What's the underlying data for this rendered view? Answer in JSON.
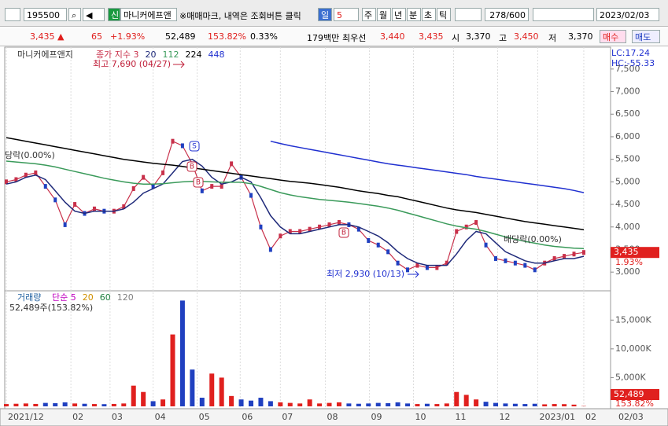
{
  "toolbar": {
    "code": "195500",
    "tag": "신",
    "name": "마니커에프앤",
    "notice": "※매매마크, 내역은 조회버튼 클릭",
    "period": "일",
    "period_n": "5",
    "tabs": [
      "주",
      "월",
      "년",
      "분",
      "초",
      "틱"
    ],
    "count": "278/600",
    "date": "2023/02/03"
  },
  "quote": {
    "price": "3,435 ▲",
    "change": "65",
    "rate": "+1.93%",
    "volume": "52,489",
    "vol_ratio": "153.82%",
    "turnover": "0.33%",
    "amount": "179백만",
    "best_label": "최우선",
    "ask": "3,440",
    "bid": "3,435",
    "open_label": "시",
    "open": "3,370",
    "high_label": "고",
    "high": "3,450",
    "low_label": "저",
    "low": "3,370",
    "buy": "매수",
    "sell": "매도"
  },
  "chart_data": [
    {
      "type": "line",
      "title": "마니커에프앤지",
      "series": [
        {
          "name": "종가 지수 3",
          "color": "#c8304a",
          "values": [
            5000,
            5050,
            5150,
            5200,
            4900,
            4600,
            4050,
            4500,
            4300,
            4400,
            4350,
            4350,
            4450,
            4850,
            5100,
            4900,
            5200,
            5900,
            5800,
            5400,
            4800,
            4900,
            4900,
            5400,
            5100,
            4700,
            4000,
            3500,
            3800,
            3900,
            3900,
            3950,
            4000,
            4050,
            4100,
            4050,
            3950,
            3700,
            3600,
            3450,
            3200,
            3050,
            3150,
            3100,
            3100,
            3200,
            3900,
            4000,
            4100,
            3600,
            3300,
            3250,
            3200,
            3150,
            3050,
            3200,
            3300,
            3350,
            3400,
            3435
          ]
        },
        {
          "name": "20",
          "color": "#1f2a7a",
          "values": [
            4950,
            5000,
            5100,
            5150,
            5050,
            4800,
            4550,
            4350,
            4300,
            4350,
            4350,
            4350,
            4400,
            4550,
            4750,
            4850,
            4950,
            5200,
            5450,
            5500,
            5350,
            5100,
            4950,
            5000,
            5100,
            5000,
            4650,
            4250,
            4000,
            3850,
            3850,
            3900,
            3950,
            4000,
            4050,
            4050,
            4000,
            3900,
            3800,
            3650,
            3450,
            3300,
            3200,
            3150,
            3150,
            3150,
            3400,
            3700,
            3900,
            3850,
            3650,
            3450,
            3350,
            3250,
            3200,
            3200,
            3250,
            3300,
            3300,
            3350
          ]
        },
        {
          "name": "112",
          "color": "#3a9a5a",
          "values": [
            5460,
            5440,
            5420,
            5400,
            5370,
            5330,
            5280,
            5230,
            5180,
            5130,
            5080,
            5040,
            5000,
            4970,
            4950,
            4950,
            4960,
            4980,
            5000,
            5010,
            5010,
            5000,
            4990,
            4990,
            4990,
            4960,
            4900,
            4830,
            4760,
            4710,
            4670,
            4640,
            4610,
            4590,
            4570,
            4550,
            4520,
            4490,
            4460,
            4420,
            4370,
            4310,
            4250,
            4190,
            4130,
            4070,
            4020,
            3980,
            3950,
            3900,
            3840,
            3780,
            3730,
            3680,
            3640,
            3600,
            3570,
            3550,
            3530,
            3520
          ]
        },
        {
          "name": "224",
          "color": "#000000",
          "values": [
            5980,
            5940,
            5900,
            5860,
            5820,
            5780,
            5740,
            5700,
            5660,
            5620,
            5580,
            5540,
            5500,
            5470,
            5440,
            5410,
            5390,
            5370,
            5340,
            5310,
            5280,
            5250,
            5220,
            5190,
            5160,
            5130,
            5100,
            5070,
            5040,
            5010,
            4990,
            4970,
            4940,
            4910,
            4880,
            4840,
            4800,
            4770,
            4740,
            4700,
            4670,
            4620,
            4570,
            4520,
            4470,
            4420,
            4380,
            4350,
            4320,
            4280,
            4240,
            4200,
            4160,
            4120,
            4090,
            4060,
            4030,
            4000,
            3970,
            3940
          ]
        },
        {
          "name": "448",
          "color": "#2030d0",
          "values": [
            null,
            null,
            null,
            null,
            null,
            null,
            null,
            null,
            null,
            null,
            null,
            null,
            null,
            null,
            null,
            null,
            null,
            null,
            null,
            null,
            null,
            null,
            null,
            null,
            null,
            null,
            null,
            5900,
            5850,
            5800,
            5760,
            5720,
            5680,
            5640,
            5600,
            5560,
            5520,
            5480,
            5440,
            5400,
            5370,
            5340,
            5310,
            5280,
            5250,
            5220,
            5190,
            5160,
            5120,
            5090,
            5060,
            5030,
            5000,
            4970,
            4940,
            4910,
            4880,
            4850,
            4810,
            4760
          ]
        }
      ],
      "ylim": [
        2620,
        7950
      ],
      "yticks": [
        {
          "value": 3000,
          "label": "3,000"
        },
        {
          "value": 3500,
          "label": "3,500"
        },
        {
          "value": 4000,
          "label": "4,000"
        },
        {
          "value": 4500,
          "label": "4,500"
        },
        {
          "value": 5000,
          "label": "5,000"
        },
        {
          "value": 5500,
          "label": "5,500"
        },
        {
          "value": 6000,
          "label": "6,000"
        },
        {
          "value": 6500,
          "label": "6,500"
        },
        {
          "value": 7000,
          "label": "7,000"
        },
        {
          "value": 7500,
          "label": "7,500"
        }
      ],
      "indicators": [
        "LC:17.24",
        "HC:-55.33"
      ],
      "last_price": "3,435",
      "last_rate": "1.93%",
      "annotations": [
        "최고 7,690 (04/27)",
        "최저 2,930 (10/13)",
        "배당락(0.00%)",
        "당락(0.00%)"
      ],
      "markers": [
        "S",
        "B",
        "B",
        "B"
      ]
    },
    {
      "type": "bar",
      "title": "거래량",
      "legend": [
        "단순 5",
        "20",
        "60",
        "120"
      ],
      "legend_colors": [
        "#c000c0",
        "#d09000",
        "#208040",
        "#808080"
      ],
      "subtitle": "52,489주(153.82%)",
      "values": [
        400,
        450,
        500,
        420,
        600,
        550,
        700,
        500,
        450,
        400,
        380,
        420,
        500,
        3600,
        2500,
        900,
        1200,
        12500,
        18400,
        6400,
        1500,
        5700,
        5000,
        1800,
        1200,
        1000,
        1500,
        900,
        700,
        600,
        500,
        1200,
        500,
        600,
        700,
        500,
        450,
        500,
        600,
        550,
        700,
        500,
        400,
        450,
        400,
        500,
        2500,
        2000,
        1200,
        800,
        600,
        500,
        450,
        400,
        450,
        350,
        400,
        380,
        300,
        52.489
      ],
      "color_up": "#e0201e",
      "color_down": "#2040c0",
      "ylim": [
        0,
        19000
      ],
      "yticks": [
        {
          "value": 5000,
          "label": "5,000K"
        },
        {
          "value": 10000,
          "label": "10,000K"
        },
        {
          "value": 15000,
          "label": "15,000K"
        }
      ],
      "last_volume": "52,489",
      "last_ratio": "153.82%",
      "xticks": [
        {
          "value": 0,
          "label": "2021/12"
        },
        {
          "value": 6.6,
          "label": "02"
        },
        {
          "value": 10.6,
          "label": "03"
        },
        {
          "value": 15,
          "label": "04"
        },
        {
          "value": 19.5,
          "label": "05"
        },
        {
          "value": 23.9,
          "label": "06"
        },
        {
          "value": 28,
          "label": "07"
        },
        {
          "value": 32.6,
          "label": "08"
        },
        {
          "value": 37.1,
          "label": "09"
        },
        {
          "value": 41.6,
          "label": "10"
        },
        {
          "value": 45.7,
          "label": "11"
        },
        {
          "value": 50.2,
          "label": "12"
        },
        {
          "value": 54.3,
          "label": "2023/01"
        },
        {
          "value": 59,
          "label": "02"
        }
      ],
      "end_label": "02/03"
    }
  ]
}
